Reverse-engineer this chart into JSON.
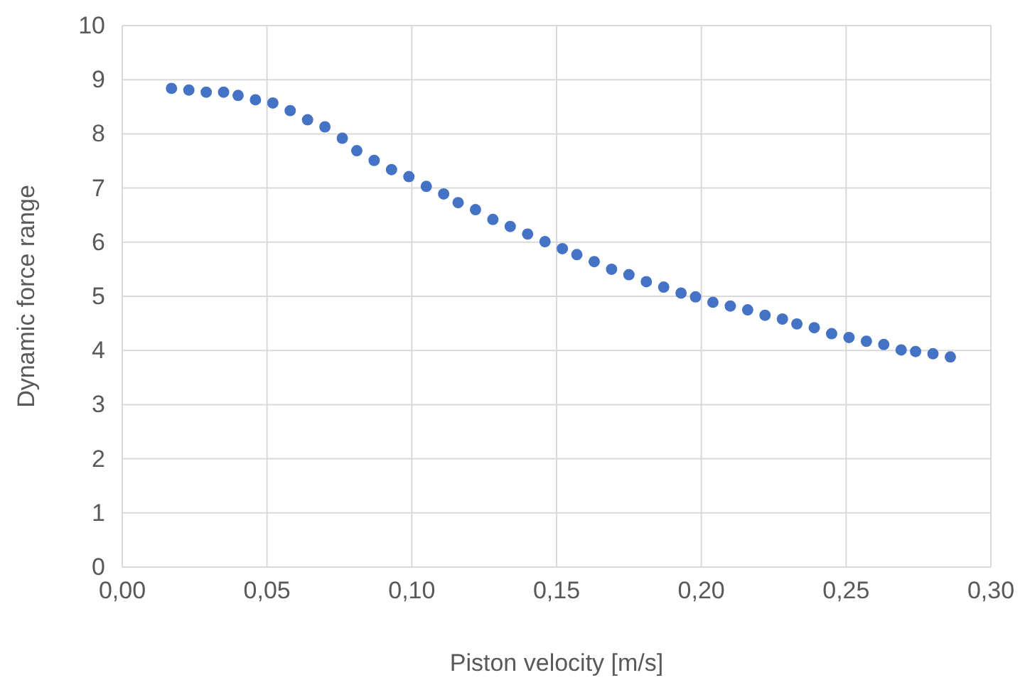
{
  "chart_data": {
    "type": "scatter",
    "xlabel": "Piston velocity [m/s]",
    "ylabel": "Dynamic force range",
    "x": [
      0.017,
      0.023,
      0.029,
      0.035,
      0.04,
      0.046,
      0.052,
      0.058,
      0.064,
      0.07,
      0.076,
      0.081,
      0.087,
      0.093,
      0.099,
      0.105,
      0.111,
      0.116,
      0.122,
      0.128,
      0.134,
      0.14,
      0.146,
      0.152,
      0.157,
      0.163,
      0.169,
      0.175,
      0.181,
      0.187,
      0.193,
      0.198,
      0.204,
      0.21,
      0.216,
      0.222,
      0.228,
      0.233,
      0.239,
      0.245,
      0.251,
      0.257,
      0.263,
      0.269,
      0.274,
      0.28,
      0.286
    ],
    "series": [
      {
        "color": "#4472c4",
        "values": [
          8.84,
          8.81,
          8.77,
          8.77,
          8.71,
          8.63,
          8.57,
          8.43,
          8.26,
          8.13,
          7.92,
          7.69,
          7.51,
          7.34,
          7.21,
          7.03,
          6.89,
          6.73,
          6.6,
          6.42,
          6.29,
          6.15,
          6.01,
          5.88,
          5.77,
          5.64,
          5.5,
          5.4,
          5.27,
          5.17,
          5.06,
          4.99,
          4.89,
          4.82,
          4.75,
          4.65,
          4.58,
          4.49,
          4.42,
          4.31,
          4.24,
          4.17,
          4.11,
          4.01,
          3.98,
          3.94,
          3.88
        ]
      }
    ],
    "xlim": [
      0,
      0.3
    ],
    "xticks": [
      {
        "value": 0,
        "label": "0,00"
      },
      {
        "value": 0.05,
        "label": "0,05"
      },
      {
        "value": 0.1,
        "label": "0,10"
      },
      {
        "value": 0.15,
        "label": "0,15"
      },
      {
        "value": 0.2,
        "label": "0,20"
      },
      {
        "value": 0.25,
        "label": "0,25"
      },
      {
        "value": 0.3,
        "label": "0,30"
      }
    ],
    "ylim": [
      0,
      10
    ],
    "yticks": [
      0,
      1,
      2,
      3,
      4,
      5,
      6,
      7,
      8,
      9,
      10
    ],
    "grid": true,
    "marker": "circle"
  }
}
